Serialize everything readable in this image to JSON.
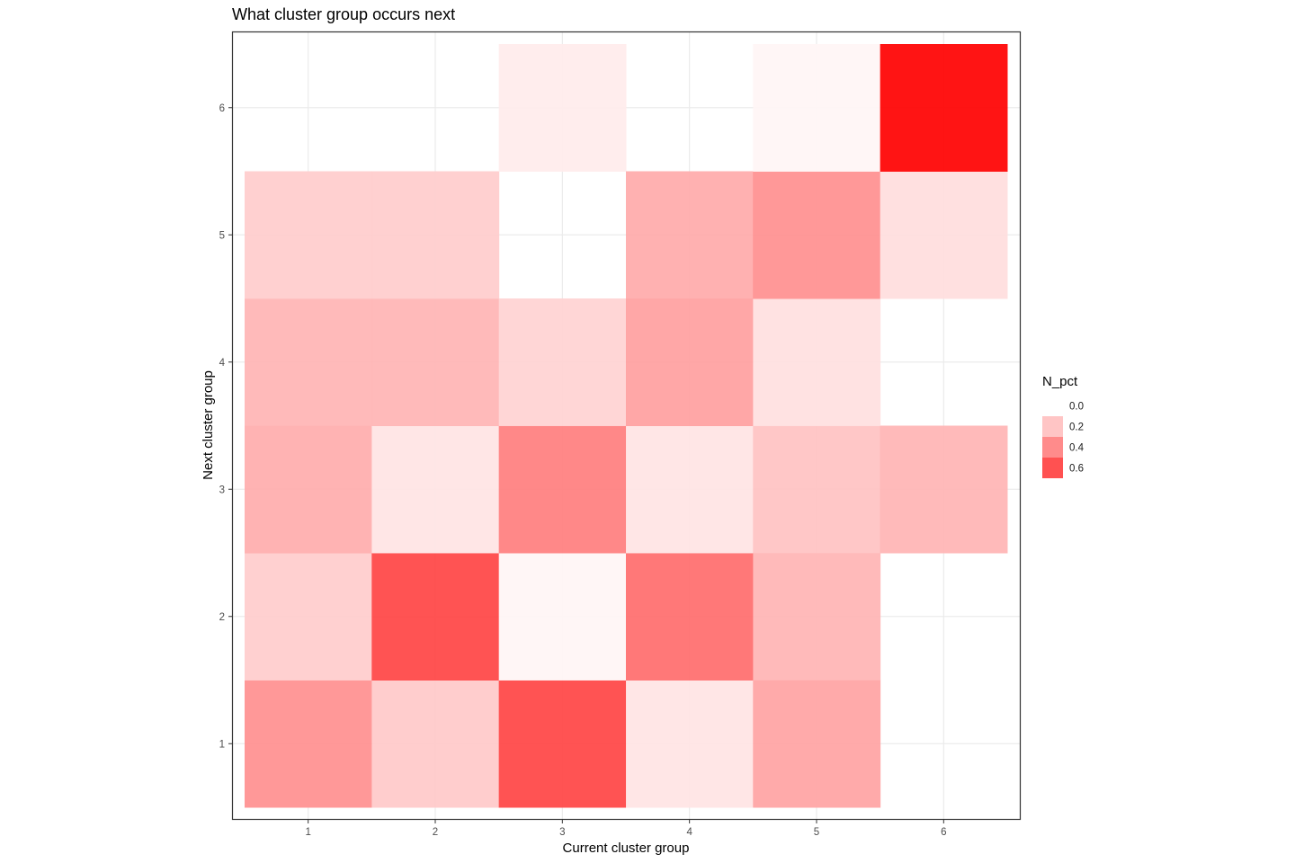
{
  "chart_data": {
    "type": "heatmap",
    "title": "What cluster group occurs next",
    "xlabel": "Current cluster group",
    "ylabel": "Next cluster group",
    "x_categories": [
      "1",
      "2",
      "3",
      "4",
      "5",
      "6"
    ],
    "y_categories": [
      "1",
      "2",
      "3",
      "4",
      "5",
      "6"
    ],
    "cells": [
      {
        "x": 1,
        "y": 1,
        "value": 0.33
      },
      {
        "x": 1,
        "y": 2,
        "value": 0.15
      },
      {
        "x": 1,
        "y": 3,
        "value": 0.24
      },
      {
        "x": 1,
        "y": 4,
        "value": 0.22
      },
      {
        "x": 1,
        "y": 5,
        "value": 0.15
      },
      {
        "x": 2,
        "y": 1,
        "value": 0.16
      },
      {
        "x": 2,
        "y": 2,
        "value": 0.55
      },
      {
        "x": 2,
        "y": 3,
        "value": 0.08
      },
      {
        "x": 2,
        "y": 4,
        "value": 0.22
      },
      {
        "x": 2,
        "y": 5,
        "value": 0.15
      },
      {
        "x": 3,
        "y": 1,
        "value": 0.55
      },
      {
        "x": 3,
        "y": 2,
        "value": 0.03
      },
      {
        "x": 3,
        "y": 3,
        "value": 0.38
      },
      {
        "x": 3,
        "y": 4,
        "value": 0.13
      },
      {
        "x": 3,
        "y": 6,
        "value": 0.06
      },
      {
        "x": 4,
        "y": 1,
        "value": 0.08
      },
      {
        "x": 4,
        "y": 2,
        "value": 0.43
      },
      {
        "x": 4,
        "y": 3,
        "value": 0.08
      },
      {
        "x": 4,
        "y": 4,
        "value": 0.28
      },
      {
        "x": 4,
        "y": 5,
        "value": 0.25
      },
      {
        "x": 5,
        "y": 1,
        "value": 0.27
      },
      {
        "x": 5,
        "y": 2,
        "value": 0.22
      },
      {
        "x": 5,
        "y": 3,
        "value": 0.18
      },
      {
        "x": 5,
        "y": 4,
        "value": 0.09
      },
      {
        "x": 5,
        "y": 5,
        "value": 0.33
      },
      {
        "x": 5,
        "y": 6,
        "value": 0.03
      },
      {
        "x": 6,
        "y": 3,
        "value": 0.22
      },
      {
        "x": 6,
        "y": 5,
        "value": 0.1
      },
      {
        "x": 6,
        "y": 6,
        "value": 0.75
      }
    ],
    "legend": {
      "title": "N_pct",
      "labels": [
        "0.0",
        "0.2",
        "0.4",
        "0.6"
      ],
      "values": [
        0.0,
        0.2,
        0.4,
        0.6
      ],
      "position": "right"
    },
    "color_scale": {
      "low": "#ffffff",
      "high": "#ff0000",
      "limits": [
        0.0,
        0.75
      ]
    },
    "grid": true
  }
}
